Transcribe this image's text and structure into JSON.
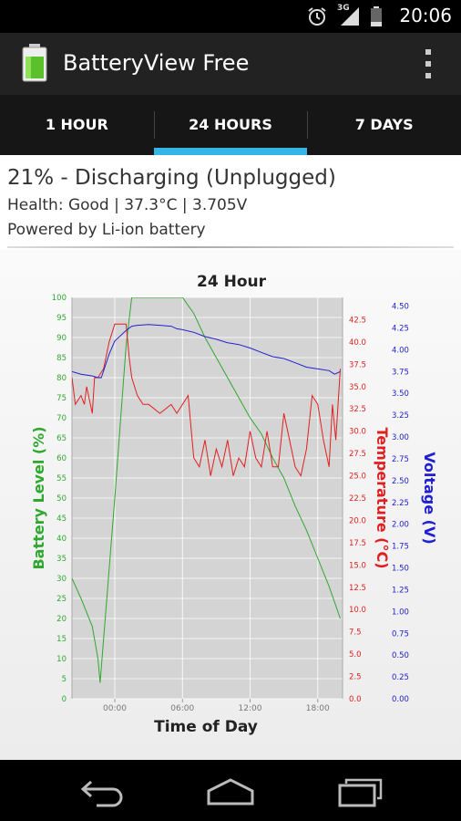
{
  "status": {
    "time": "20:06",
    "network": "3G",
    "icons": [
      "alarm-icon",
      "signal-icon",
      "battery-icon"
    ]
  },
  "appbar": {
    "title": "BatteryView Free",
    "icon": "battery-app-icon"
  },
  "tabs": [
    {
      "label": "1 HOUR",
      "active": false
    },
    {
      "label": "24 HOURS",
      "active": true
    },
    {
      "label": "7 DAYS",
      "active": false
    }
  ],
  "summary": {
    "headline": "21% - Discharging (Unplugged)",
    "health": "Health: Good | 37.3°C | 3.705V",
    "source": "Powered by Li-ion battery"
  },
  "colors": {
    "accent": "#34b5e5",
    "battery": "#2fa82f",
    "temperature": "#e02020",
    "voltage": "#2020d0",
    "plot_bg": "#d4d4d4"
  },
  "chart_data": {
    "type": "line",
    "title": "24 Hour",
    "xlabel": "Time of Day",
    "x_ticks": [
      "00:00",
      "06:00",
      "12:00",
      "18:00"
    ],
    "x_range_hours": [
      -3.8,
      20.2
    ],
    "grid": true,
    "y_axes": [
      {
        "label": "Battery Level (%)",
        "range": [
          0,
          100
        ],
        "ticks": [
          "0",
          "5",
          "10",
          "15",
          "20",
          "25",
          "30",
          "35",
          "40",
          "45",
          "50",
          "55",
          "60",
          "65",
          "70",
          "75",
          "80",
          "85",
          "90",
          "95",
          "100"
        ]
      },
      {
        "label": "Temperature (°C)",
        "range": [
          0,
          45
        ],
        "ticks": [
          "0.0",
          "2.5",
          "5.0",
          "7.5",
          "10.0",
          "12.5",
          "15.0",
          "17.5",
          "20.0",
          "22.5",
          "25.0",
          "27.5",
          "30.0",
          "32.5",
          "35.0",
          "37.5",
          "40.0",
          "42.5"
        ]
      },
      {
        "label": "Voltage (V)",
        "range": [
          0,
          4.6
        ],
        "ticks": [
          "0.00",
          "0.25",
          "0.50",
          "0.75",
          "1.00",
          "1.25",
          "1.50",
          "1.75",
          "2.00",
          "2.25",
          "2.50",
          "2.75",
          "3.00",
          "3.25",
          "3.50",
          "3.75",
          "4.00",
          "4.25",
          "4.50"
        ]
      }
    ],
    "series": [
      {
        "axis": 0,
        "x": [
          -3.8,
          -3.0,
          -2.0,
          -1.5,
          -1.3,
          0.0,
          1.0,
          1.5,
          2.0,
          6.0,
          7.0,
          8.0,
          9.0,
          10.0,
          11.0,
          12.0,
          13.0,
          14.0,
          15.0,
          16.0,
          17.0,
          18.0,
          19.0,
          20.0
        ],
        "y": [
          30,
          25,
          18,
          10,
          4,
          50,
          88,
          100,
          100,
          100,
          96,
          90,
          85,
          80,
          75,
          70,
          66,
          60,
          55,
          48,
          42,
          35,
          28,
          20
        ]
      },
      {
        "axis": 1,
        "x": [
          -3.8,
          -3.5,
          -3.0,
          -2.7,
          -2.5,
          -2.0,
          -1.8,
          -1.5,
          -1.0,
          -0.5,
          0.0,
          0.5,
          1.0,
          1.3,
          1.5,
          2.0,
          2.5,
          3.0,
          4.0,
          5.0,
          5.5,
          6.0,
          6.5,
          7.0,
          7.5,
          8.0,
          8.5,
          9.0,
          9.5,
          10.0,
          10.5,
          11.0,
          11.5,
          12.0,
          12.5,
          13.0,
          13.5,
          14.0,
          14.5,
          15.0,
          15.5,
          16.0,
          16.5,
          17.0,
          17.5,
          18.0,
          18.5,
          19.0,
          19.3,
          19.6,
          20.0
        ],
        "y": [
          36,
          33,
          34,
          33,
          35,
          32,
          36,
          36,
          37,
          40,
          42,
          42,
          42,
          38,
          36,
          34,
          33,
          33,
          32,
          33,
          32,
          33,
          34,
          27,
          26,
          29,
          25,
          28,
          26,
          29,
          25,
          27,
          26,
          30,
          27,
          26,
          30,
          26,
          26,
          32,
          29,
          26,
          25,
          28,
          34,
          33,
          29,
          26,
          33,
          29,
          37
        ]
      },
      {
        "axis": 2,
        "x": [
          -3.8,
          -3.0,
          -2.0,
          -1.5,
          -1.2,
          -0.5,
          0.0,
          1.0,
          1.5,
          2.0,
          3.0,
          4.0,
          5.0,
          5.5,
          6.0,
          7.0,
          8.0,
          9.0,
          10.0,
          11.0,
          12.0,
          13.0,
          14.0,
          15.0,
          16.0,
          17.0,
          18.0,
          19.0,
          19.5,
          20.0
        ],
        "y": [
          3.75,
          3.72,
          3.7,
          3.68,
          3.68,
          3.95,
          4.1,
          4.22,
          4.27,
          4.28,
          4.29,
          4.28,
          4.27,
          4.24,
          4.23,
          4.2,
          4.15,
          4.12,
          4.08,
          4.06,
          4.02,
          3.97,
          3.92,
          3.9,
          3.85,
          3.8,
          3.78,
          3.76,
          3.72,
          3.75
        ]
      }
    ]
  }
}
